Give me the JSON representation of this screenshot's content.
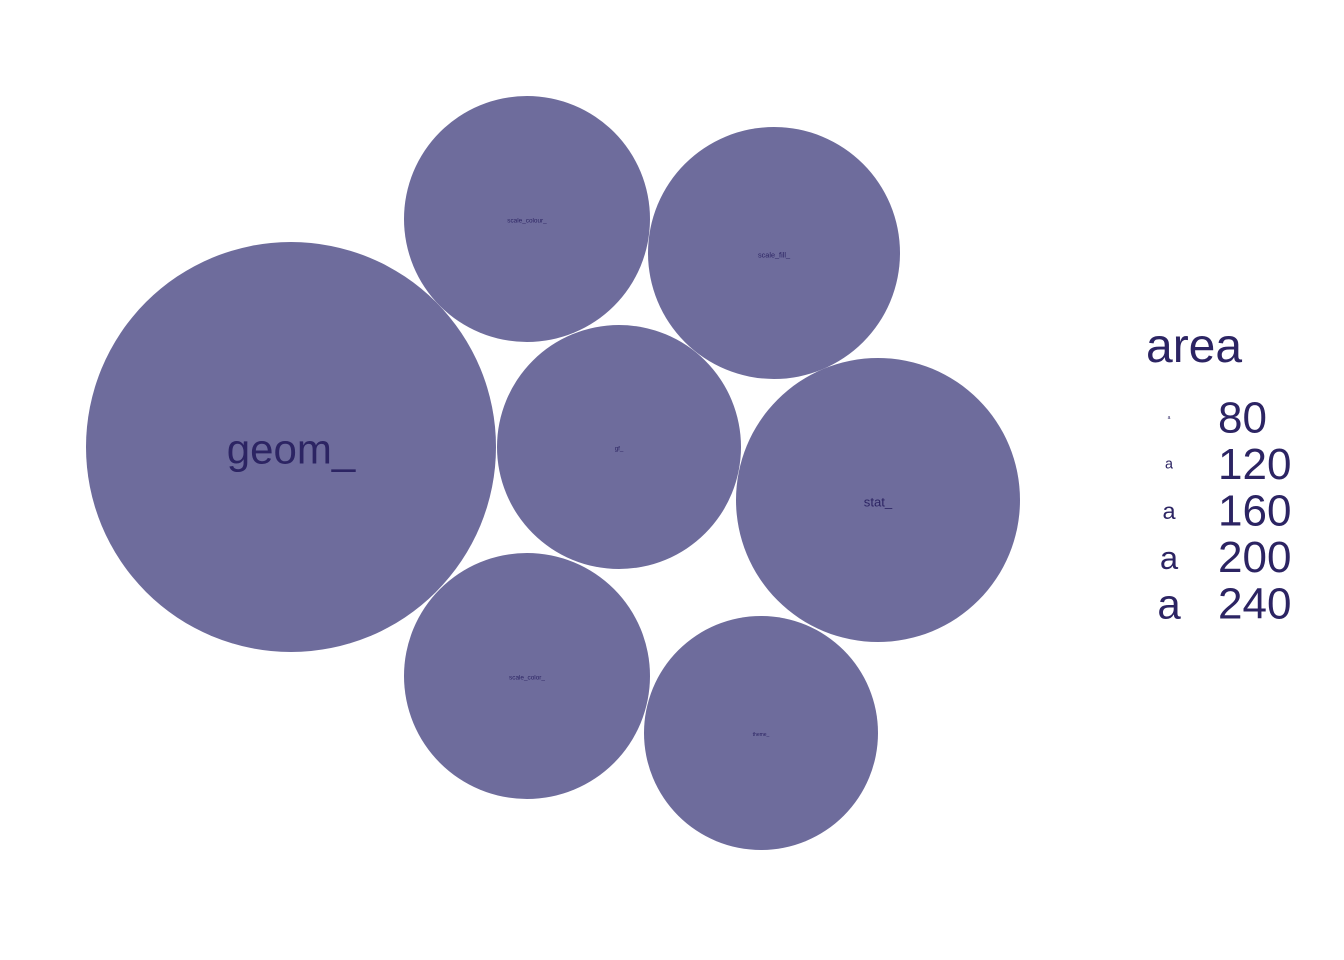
{
  "chart_data": {
    "type": "circle-packing",
    "title": "",
    "colors": {
      "bubble_fill": "#6e6c9c",
      "label_text": "#2c2463",
      "background": "#ffffff"
    },
    "bubbles": [
      {
        "label": "geom_",
        "area": 240
      },
      {
        "label": "scale_colour_",
        "area": 86
      },
      {
        "label": "scale_fill_",
        "area": 90
      },
      {
        "label": "gf_",
        "area": 85
      },
      {
        "label": "stat_",
        "area": 115
      },
      {
        "label": "scale_color_",
        "area": 86
      },
      {
        "label": "theme_",
        "area": 78
      }
    ],
    "legend": {
      "title": "area",
      "position": "right",
      "key_glyph": "a",
      "entries": [
        {
          "key": "a",
          "value": "80"
        },
        {
          "key": "a",
          "value": "120"
        },
        {
          "key": "a",
          "value": "160"
        },
        {
          "key": "a",
          "value": "200"
        },
        {
          "key": "a",
          "value": "240"
        }
      ]
    }
  }
}
